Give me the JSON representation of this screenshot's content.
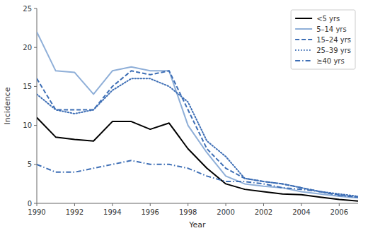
{
  "chart_data": {
    "type": "line",
    "xlabel": "Year",
    "ylabel": "Incidence",
    "x": [
      1990,
      1991,
      1992,
      1993,
      1994,
      1995,
      1996,
      1997,
      1998,
      1999,
      2000,
      2001,
      2002,
      2003,
      2004,
      2005,
      2006,
      2007
    ],
    "xlim": [
      1990,
      2007
    ],
    "xticks": [
      1990,
      1992,
      1994,
      1996,
      1998,
      2000,
      2002,
      2004,
      2006
    ],
    "ylim": [
      0,
      25
    ],
    "yticks": [
      0,
      5,
      10,
      15,
      20,
      25
    ],
    "grid": false,
    "legend": "upper right",
    "series": [
      {
        "name": "<5 yrs",
        "color": "#000000",
        "line_style": "solid",
        "values": [
          11.0,
          8.5,
          8.2,
          8.0,
          10.5,
          10.5,
          9.5,
          10.3,
          7.0,
          4.5,
          2.5,
          1.8,
          1.5,
          1.2,
          1.1,
          0.8,
          0.5,
          0.3
        ]
      },
      {
        "name": "5–14 yrs",
        "color": "#8fafd8",
        "line_style": "solid",
        "values": [
          22.0,
          17.0,
          16.8,
          14.0,
          17.0,
          17.5,
          17.0,
          17.0,
          10.0,
          6.5,
          3.5,
          2.5,
          2.2,
          2.0,
          1.5,
          1.2,
          0.9,
          0.7
        ]
      },
      {
        "name": "15–24 yrs",
        "color": "#3d6eb5",
        "line_style": "dashed",
        "values": [
          16.0,
          12.0,
          12.0,
          12.0,
          15.0,
          17.0,
          16.5,
          17.0,
          12.0,
          7.0,
          4.5,
          3.2,
          2.8,
          2.5,
          2.0,
          1.5,
          1.1,
          0.8
        ]
      },
      {
        "name": "25–39 yrs",
        "color": "#3d6eb5",
        "line_style": "dotted",
        "values": [
          14.0,
          12.0,
          11.5,
          12.0,
          14.5,
          16.0,
          16.0,
          15.0,
          13.0,
          8.0,
          6.0,
          3.2,
          2.8,
          2.5,
          2.0,
          1.5,
          1.2,
          0.9
        ]
      },
      {
        "name": "≥40 yrs",
        "color": "#3d6eb5",
        "line_style": "dashdot",
        "values": [
          5.0,
          4.0,
          4.0,
          4.5,
          5.0,
          5.5,
          5.0,
          5.0,
          4.5,
          3.5,
          2.8,
          2.8,
          2.5,
          2.0,
          1.8,
          1.5,
          1.0,
          0.8
        ]
      }
    ]
  }
}
